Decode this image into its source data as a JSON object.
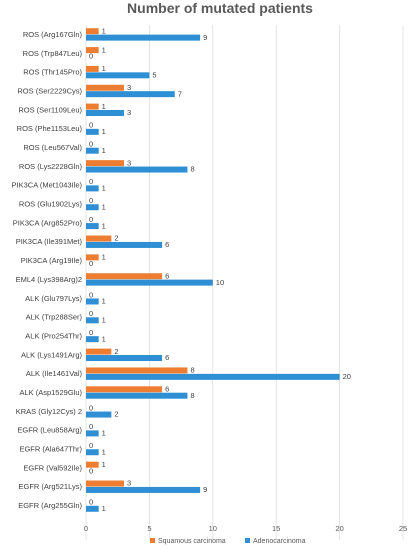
{
  "chart_data": {
    "type": "bar",
    "orientation": "horizontal",
    "title": "Number of mutated patients",
    "categories": [
      "ROS (Arg167Gln)",
      "ROS (Trp847Leu)",
      "ROS (Thr145Pro)",
      "ROS (Ser2229Cys)",
      "ROS (Ser1109Leu)",
      "ROS (Phe1153Leu)",
      "ROS (Leu567Val)",
      "ROS (Lys2228Gln)",
      "PIK3CA (Met1043Ile)",
      "ROS (Glu1902Lys)",
      "PIK3CA (Arg852Pro)",
      "PIK3CA (Ile391Met)",
      "PIK3CA (Arg19Ile)",
      "EML4 (Lys398Arg)2",
      "ALK (Glu797Lys)",
      "ALK (Trp288Ser)",
      "ALK (Pro254Thr)",
      "ALK (Lys1491Arg)",
      "ALK (Ile1461Val)",
      "ALK (Asp1529Glu)",
      "KRAS (Gly12Cys) 2",
      "EGFR (Leu858Arg)",
      "EGFR (Ala647Thr)",
      "EGFR (Val592Ile)",
      "EGFR (Arg521Lys)",
      "EGFR (Arg255Gln)"
    ],
    "series": [
      {
        "name": "Squamous carcinoma",
        "color": "#ed7d31",
        "values": [
          1,
          1,
          1,
          3,
          1,
          0,
          0,
          3,
          0,
          0,
          0,
          2,
          1,
          6,
          0,
          0,
          0,
          2,
          8,
          6,
          0,
          0,
          0,
          1,
          3,
          0
        ]
      },
      {
        "name": "Adenocarcinoma",
        "color": "#2e8fd4",
        "values": [
          9,
          0,
          5,
          7,
          3,
          1,
          1,
          8,
          1,
          1,
          1,
          6,
          0,
          10,
          1,
          1,
          1,
          6,
          20,
          8,
          2,
          1,
          1,
          0,
          9,
          1
        ]
      }
    ],
    "xticks": [
      "0",
      "5",
      "10",
      "15",
      "20",
      "25"
    ],
    "xlim": [
      0,
      25
    ],
    "grid": true,
    "legend_position": "bottom"
  }
}
